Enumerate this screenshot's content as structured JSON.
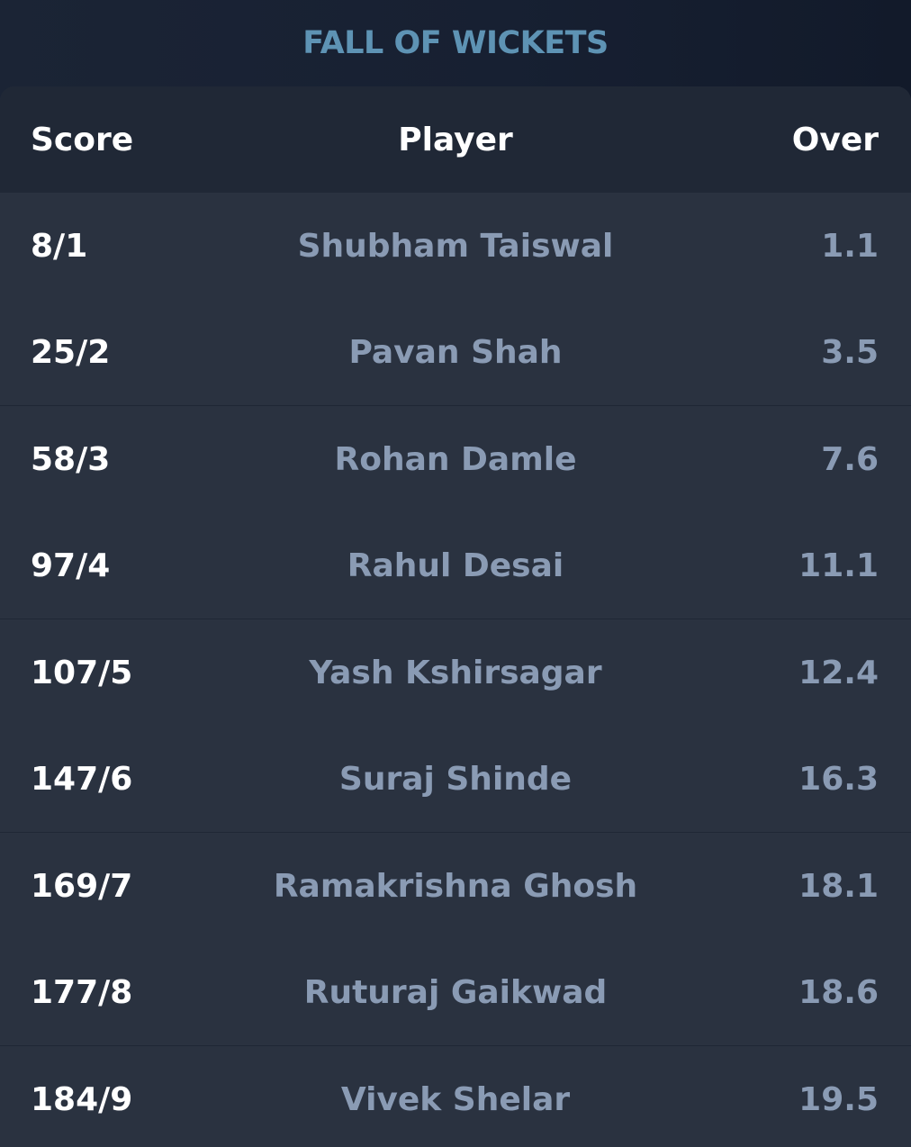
{
  "title": "FALL OF WICKETS",
  "table": {
    "headers": {
      "score": "Score",
      "player": "Player",
      "over": "Over"
    },
    "rows": [
      {
        "score": "8/1",
        "player": "Shubham Taiswal",
        "over": "1.1"
      },
      {
        "score": "25/2",
        "player": "Pavan Shah",
        "over": "3.5"
      },
      {
        "score": "58/3",
        "player": "Rohan Damle",
        "over": "7.6"
      },
      {
        "score": "97/4",
        "player": "Rahul Desai",
        "over": "11.1"
      },
      {
        "score": "107/5",
        "player": "Yash Kshirsagar",
        "over": "12.4"
      },
      {
        "score": "147/6",
        "player": "Suraj Shinde",
        "over": "16.3"
      },
      {
        "score": "169/7",
        "player": "Ramakrishna Ghosh",
        "over": "18.1"
      },
      {
        "score": "177/8",
        "player": "Ruturaj Gaikwad",
        "over": "18.6"
      },
      {
        "score": "184/9",
        "player": "Vivek Shelar",
        "over": "19.5"
      }
    ]
  }
}
